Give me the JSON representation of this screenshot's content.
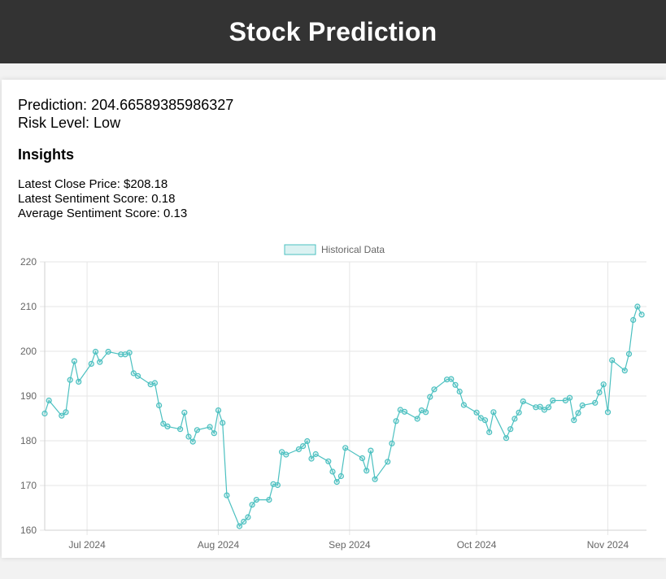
{
  "header": {
    "title": "Stock Prediction"
  },
  "prediction": {
    "label": "Prediction:",
    "value": "204.66589385986327"
  },
  "risk": {
    "label": "Risk Level:",
    "value": "Low"
  },
  "insights": {
    "title": "Insights",
    "latest_close": "Latest Close Price: $208.18",
    "latest_sentiment": "Latest Sentiment Score: 0.18",
    "average_sentiment": "Average Sentiment Score: 0.13"
  },
  "colors": {
    "line": "#4bc0c0",
    "point_fill": "rgba(75,192,192,0.2)",
    "header_bg": "#333333"
  },
  "chart_data": {
    "type": "line",
    "legend": "Historical Data",
    "legend_position": "top",
    "grid": true,
    "ylim": [
      160,
      220
    ],
    "yticks": [
      160,
      170,
      180,
      190,
      200,
      210,
      220
    ],
    "xlim": [
      "2024-06-21",
      "2024-11-08"
    ],
    "xticks": [
      {
        "date": "2024-07-01",
        "label": "Jul 2024"
      },
      {
        "date": "2024-08-01",
        "label": "Aug 2024"
      },
      {
        "date": "2024-09-01",
        "label": "Sep 2024"
      },
      {
        "date": "2024-10-01",
        "label": "Oct 2024"
      },
      {
        "date": "2024-11-01",
        "label": "Nov 2024"
      }
    ],
    "series": [
      {
        "name": "Historical Data",
        "points": [
          [
            "2024-06-21",
            186.1
          ],
          [
            "2024-06-22",
            189.0
          ],
          [
            "2024-06-25",
            185.6
          ],
          [
            "2024-06-26",
            186.4
          ],
          [
            "2024-06-27",
            193.6
          ],
          [
            "2024-06-28",
            197.8
          ],
          [
            "2024-06-29",
            193.2
          ],
          [
            "2024-07-02",
            197.2
          ],
          [
            "2024-07-03",
            199.9
          ],
          [
            "2024-07-04",
            197.6
          ],
          [
            "2024-07-06",
            199.9
          ],
          [
            "2024-07-09",
            199.3
          ],
          [
            "2024-07-10",
            199.3
          ],
          [
            "2024-07-11",
            199.7
          ],
          [
            "2024-07-12",
            195.1
          ],
          [
            "2024-07-13",
            194.5
          ],
          [
            "2024-07-16",
            192.6
          ],
          [
            "2024-07-17",
            192.9
          ],
          [
            "2024-07-18",
            187.9
          ],
          [
            "2024-07-19",
            183.8
          ],
          [
            "2024-07-20",
            183.2
          ],
          [
            "2024-07-23",
            182.6
          ],
          [
            "2024-07-24",
            186.3
          ],
          [
            "2024-07-25",
            180.9
          ],
          [
            "2024-07-26",
            179.8
          ],
          [
            "2024-07-27",
            182.4
          ],
          [
            "2024-07-30",
            183.1
          ],
          [
            "2024-07-31",
            181.7
          ],
          [
            "2024-08-01",
            186.8
          ],
          [
            "2024-08-02",
            184.0
          ],
          [
            "2024-08-03",
            167.8
          ],
          [
            "2024-08-06",
            160.9
          ],
          [
            "2024-08-07",
            161.9
          ],
          [
            "2024-08-08",
            162.9
          ],
          [
            "2024-08-09",
            165.7
          ],
          [
            "2024-08-10",
            166.8
          ],
          [
            "2024-08-13",
            166.8
          ],
          [
            "2024-08-14",
            170.3
          ],
          [
            "2024-08-15",
            170.1
          ],
          [
            "2024-08-16",
            177.5
          ],
          [
            "2024-08-17",
            176.9
          ],
          [
            "2024-08-20",
            178.1
          ],
          [
            "2024-08-21",
            178.8
          ],
          [
            "2024-08-22",
            179.9
          ],
          [
            "2024-08-23",
            176.0
          ],
          [
            "2024-08-24",
            177.0
          ],
          [
            "2024-08-27",
            175.4
          ],
          [
            "2024-08-28",
            173.1
          ],
          [
            "2024-08-29",
            170.8
          ],
          [
            "2024-08-30",
            172.1
          ],
          [
            "2024-08-31",
            178.4
          ],
          [
            "2024-09-04",
            176.1
          ],
          [
            "2024-09-05",
            173.3
          ],
          [
            "2024-09-06",
            177.8
          ],
          [
            "2024-09-07",
            171.4
          ],
          [
            "2024-09-10",
            175.3
          ],
          [
            "2024-09-11",
            179.4
          ],
          [
            "2024-09-12",
            184.4
          ],
          [
            "2024-09-13",
            186.9
          ],
          [
            "2024-09-14",
            186.5
          ],
          [
            "2024-09-17",
            184.9
          ],
          [
            "2024-09-18",
            186.8
          ],
          [
            "2024-09-19",
            186.4
          ],
          [
            "2024-09-20",
            189.8
          ],
          [
            "2024-09-21",
            191.5
          ],
          [
            "2024-09-24",
            193.7
          ],
          [
            "2024-09-25",
            193.8
          ],
          [
            "2024-09-26",
            192.5
          ],
          [
            "2024-09-27",
            191.0
          ],
          [
            "2024-09-28",
            188.0
          ],
          [
            "2024-10-01",
            186.3
          ],
          [
            "2024-10-02",
            185.1
          ],
          [
            "2024-10-03",
            184.6
          ],
          [
            "2024-10-04",
            181.9
          ],
          [
            "2024-10-05",
            186.4
          ],
          [
            "2024-10-08",
            180.6
          ],
          [
            "2024-10-09",
            182.6
          ],
          [
            "2024-10-10",
            184.9
          ],
          [
            "2024-10-11",
            186.3
          ],
          [
            "2024-10-12",
            188.8
          ],
          [
            "2024-10-15",
            187.5
          ],
          [
            "2024-10-16",
            187.6
          ],
          [
            "2024-10-17",
            186.9
          ],
          [
            "2024-10-18",
            187.5
          ],
          [
            "2024-10-19",
            189.0
          ],
          [
            "2024-10-22",
            189.0
          ],
          [
            "2024-10-23",
            189.6
          ],
          [
            "2024-10-24",
            184.6
          ],
          [
            "2024-10-25",
            186.2
          ],
          [
            "2024-10-26",
            187.9
          ],
          [
            "2024-10-29",
            188.5
          ],
          [
            "2024-10-30",
            190.8
          ],
          [
            "2024-10-31",
            192.6
          ],
          [
            "2024-11-01",
            186.4
          ],
          [
            "2024-11-02",
            198.0
          ],
          [
            "2024-11-05",
            195.7
          ],
          [
            "2024-11-06",
            199.4
          ],
          [
            "2024-11-07",
            207.0
          ],
          [
            "2024-11-08",
            210.0
          ],
          [
            "2024-11-09",
            208.2
          ]
        ]
      }
    ]
  }
}
